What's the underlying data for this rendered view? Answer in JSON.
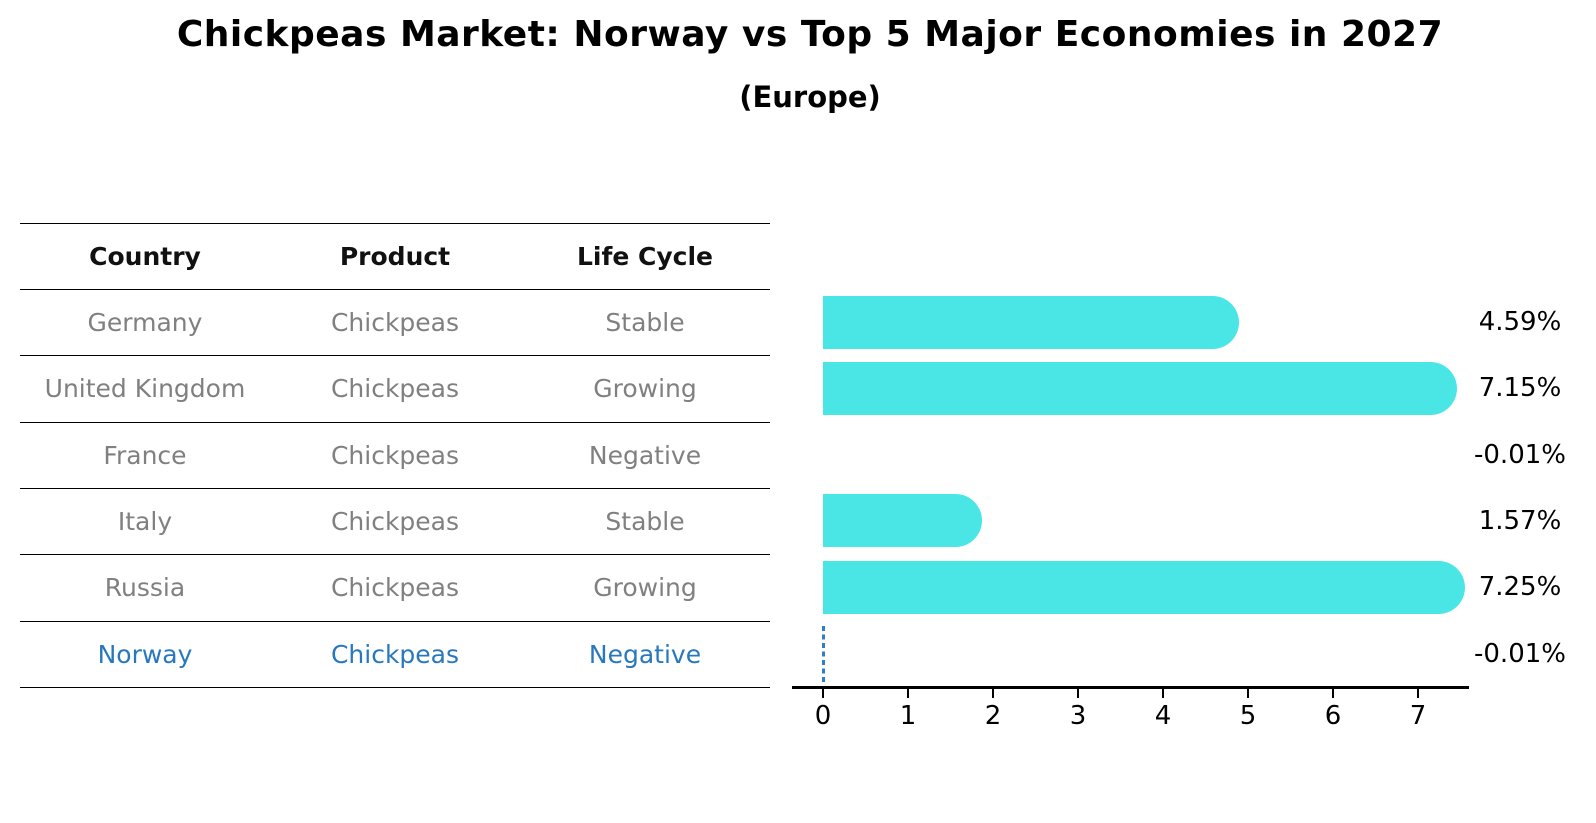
{
  "title": "Chickpeas Market: Norway vs Top 5 Major Economies in 2027",
  "subtitle": "(Europe)",
  "table": {
    "columns": [
      "Country",
      "Product",
      "Life Cycle"
    ],
    "rows": [
      {
        "country": "Germany",
        "product": "Chickpeas",
        "life_cycle": "Stable",
        "highlighted": false
      },
      {
        "country": "United Kingdom",
        "product": "Chickpeas",
        "life_cycle": "Growing",
        "highlighted": false
      },
      {
        "country": "France",
        "product": "Chickpeas",
        "life_cycle": "Negative",
        "highlighted": false
      },
      {
        "country": "Italy",
        "product": "Chickpeas",
        "life_cycle": "Stable",
        "highlighted": false
      },
      {
        "country": "Russia",
        "product": "Chickpeas",
        "life_cycle": "Growing",
        "highlighted": false
      },
      {
        "country": "Norway",
        "product": "Chickpeas",
        "life_cycle": "Negative",
        "highlighted": true
      }
    ]
  },
  "chart_data": {
    "type": "bar",
    "orientation": "horizontal",
    "title": "Chickpeas Market: Norway vs Top 5 Major Economies in 2027",
    "subtitle": "(Europe)",
    "categories": [
      "Germany",
      "United Kingdom",
      "France",
      "Italy",
      "Russia",
      "Norway"
    ],
    "values": [
      4.59,
      7.15,
      -0.01,
      1.57,
      7.25,
      -0.01
    ],
    "value_labels": [
      "4.59%",
      "7.15%",
      "-0.01%",
      "1.57%",
      "7.25%",
      "-0.01%"
    ],
    "highlighted_index": 5,
    "xticks": [
      0,
      1,
      2,
      3,
      4,
      5,
      6,
      7
    ],
    "xlim": [
      -0.36,
      7.6
    ],
    "xlabel": "",
    "ylabel": "",
    "grid": false,
    "legend": false
  },
  "colors": {
    "bar": "#4AE5E5",
    "highlight": "#2878BE",
    "dash": "#2E7FC8",
    "gray_text": "#808080",
    "axis": "#000000",
    "background": "#FFFFFF"
  }
}
